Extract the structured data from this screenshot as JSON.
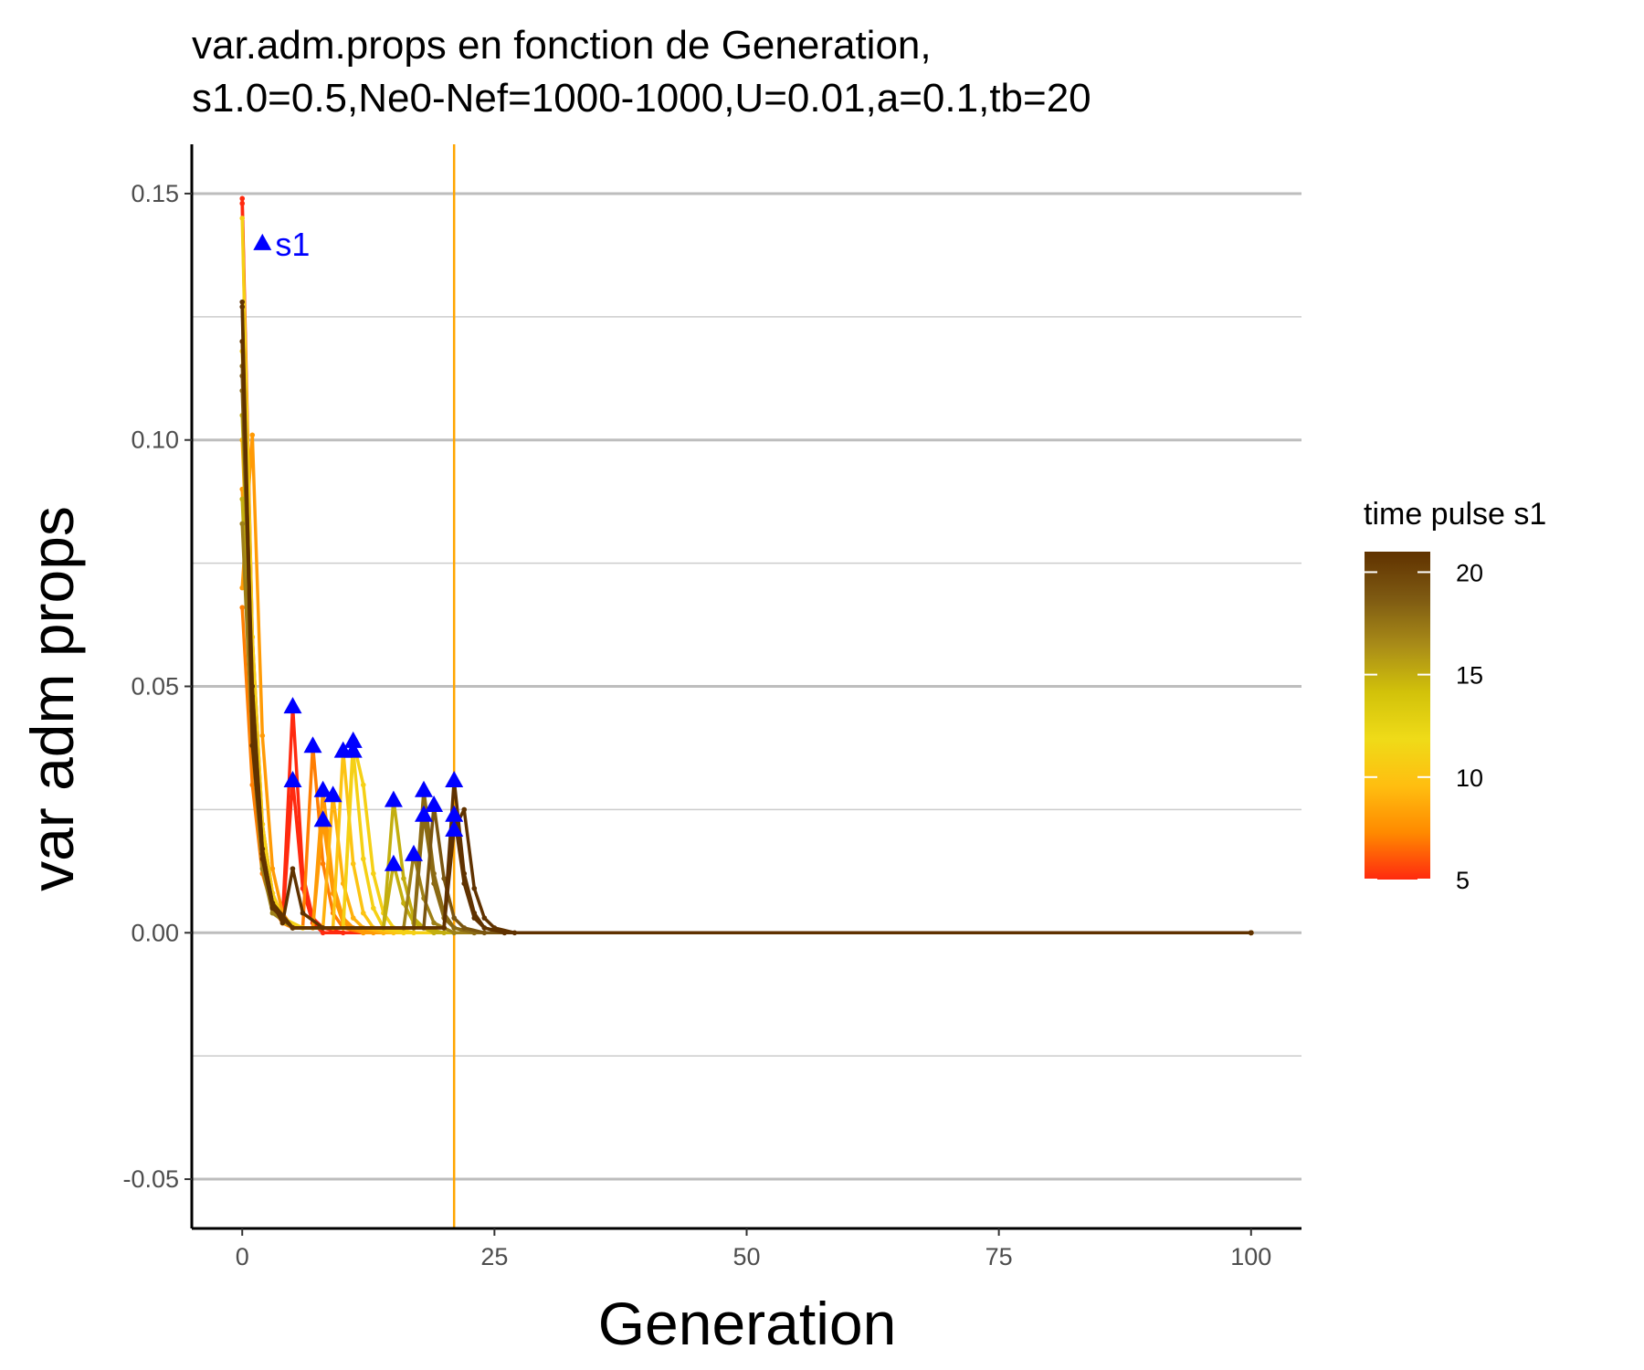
{
  "chart_data": {
    "type": "line",
    "title_line1": "var.adm.props en fonction de Generation,",
    "title_line2": "s1.0=0.5,Ne0-Nef=1000-1000,U=0.01,a=0.1,tb=20",
    "xlabel": "Generation",
    "ylabel": "var adm props",
    "xlim": [
      -5,
      105
    ],
    "ylim": [
      -0.06,
      0.16
    ],
    "xticks": [
      0,
      25,
      50,
      75,
      100
    ],
    "xtick_labels": [
      "0",
      "25",
      "50",
      "75",
      "100"
    ],
    "yticks": [
      -0.05,
      0.0,
      0.05,
      0.1,
      0.15
    ],
    "ytick_labels": [
      "-0.05",
      "0.00",
      "0.05",
      "0.10",
      "0.15"
    ],
    "y_minor_gridlines": [
      -0.025,
      0.025,
      0.075,
      0.125
    ],
    "grid": "horizontal",
    "vline": {
      "x": 21,
      "color": "#FFA500"
    },
    "annotation": {
      "text": "s1",
      "x": 2,
      "y": 0.14,
      "color": "#0000FF"
    },
    "legend": {
      "title": "time pulse s1",
      "placement": "right",
      "type": "colorbar",
      "range": [
        5,
        21
      ],
      "ticks": [
        5,
        10,
        15,
        20
      ],
      "tick_labels": [
        "5",
        "10",
        "15",
        "20"
      ],
      "colors": [
        "#FF2A0F",
        "#FF8A00",
        "#FFBE10",
        "#EFDB18",
        "#D2C20A",
        "#A98C18",
        "#7E5A12",
        "#603200"
      ]
    },
    "series": [
      {
        "pulse": 5,
        "values": [
          [
            0,
            0.149
          ],
          [
            1,
            0.06
          ],
          [
            2,
            0.022
          ],
          [
            3,
            0.008
          ],
          [
            4,
            0.003
          ],
          [
            5,
            0.046
          ],
          [
            6,
            0.012
          ],
          [
            7,
            0.003
          ],
          [
            8,
            0.001
          ],
          [
            10,
            0.0
          ],
          [
            100,
            0.0
          ]
        ]
      },
      {
        "pulse": 5,
        "values": [
          [
            0,
            0.148
          ],
          [
            1,
            0.055
          ],
          [
            2,
            0.018
          ],
          [
            3,
            0.006
          ],
          [
            4,
            0.002
          ],
          [
            5,
            0.031
          ],
          [
            6,
            0.009
          ],
          [
            7,
            0.002
          ],
          [
            8,
            0.0
          ],
          [
            100,
            0.0
          ]
        ]
      },
      {
        "pulse": 7,
        "values": [
          [
            0,
            0.066
          ],
          [
            1,
            0.03
          ],
          [
            2,
            0.012
          ],
          [
            3,
            0.005
          ],
          [
            4,
            0.002
          ],
          [
            5,
            0.001
          ],
          [
            6,
            0.001
          ],
          [
            7,
            0.038
          ],
          [
            8,
            0.014
          ],
          [
            9,
            0.004
          ],
          [
            10,
            0.001
          ],
          [
            12,
            0.0
          ],
          [
            100,
            0.0
          ]
        ]
      },
      {
        "pulse": 8,
        "values": [
          [
            0,
            0.07
          ],
          [
            1,
            0.101
          ],
          [
            2,
            0.04
          ],
          [
            3,
            0.013
          ],
          [
            4,
            0.004
          ],
          [
            5,
            0.001
          ],
          [
            7,
            0.001
          ],
          [
            8,
            0.029
          ],
          [
            9,
            0.01
          ],
          [
            10,
            0.003
          ],
          [
            11,
            0.001
          ],
          [
            13,
            0.0
          ],
          [
            100,
            0.0
          ]
        ]
      },
      {
        "pulse": 8,
        "values": [
          [
            0,
            0.09
          ],
          [
            1,
            0.045
          ],
          [
            2,
            0.016
          ],
          [
            3,
            0.005
          ],
          [
            5,
            0.001
          ],
          [
            7,
            0.001
          ],
          [
            8,
            0.023
          ],
          [
            9,
            0.008
          ],
          [
            10,
            0.002
          ],
          [
            12,
            0.0
          ],
          [
            100,
            0.0
          ]
        ]
      },
      {
        "pulse": 9,
        "values": [
          [
            0,
            0.1
          ],
          [
            1,
            0.05
          ],
          [
            2,
            0.018
          ],
          [
            3,
            0.006
          ],
          [
            4,
            0.002
          ],
          [
            6,
            0.001
          ],
          [
            8,
            0.001
          ],
          [
            9,
            0.028
          ],
          [
            10,
            0.01
          ],
          [
            11,
            0.003
          ],
          [
            12,
            0.001
          ],
          [
            14,
            0.0
          ],
          [
            100,
            0.0
          ]
        ]
      },
      {
        "pulse": 10,
        "values": [
          [
            0,
            0.12
          ],
          [
            1,
            0.055
          ],
          [
            2,
            0.02
          ],
          [
            3,
            0.007
          ],
          [
            4,
            0.002
          ],
          [
            6,
            0.001
          ],
          [
            9,
            0.001
          ],
          [
            10,
            0.037
          ],
          [
            11,
            0.014
          ],
          [
            12,
            0.004
          ],
          [
            13,
            0.001
          ],
          [
            15,
            0.0
          ],
          [
            100,
            0.0
          ]
        ]
      },
      {
        "pulse": 11,
        "values": [
          [
            0,
            0.145
          ],
          [
            1,
            0.06
          ],
          [
            2,
            0.022
          ],
          [
            3,
            0.008
          ],
          [
            4,
            0.003
          ],
          [
            6,
            0.001
          ],
          [
            10,
            0.001
          ],
          [
            11,
            0.039
          ],
          [
            12,
            0.03
          ],
          [
            13,
            0.012
          ],
          [
            14,
            0.004
          ],
          [
            15,
            0.001
          ],
          [
            17,
            0.0
          ],
          [
            100,
            0.0
          ]
        ]
      },
      {
        "pulse": 11,
        "values": [
          [
            0,
            0.118
          ],
          [
            1,
            0.05
          ],
          [
            2,
            0.018
          ],
          [
            3,
            0.006
          ],
          [
            5,
            0.001
          ],
          [
            10,
            0.001
          ],
          [
            11,
            0.037
          ],
          [
            12,
            0.015
          ],
          [
            13,
            0.005
          ],
          [
            14,
            0.001
          ],
          [
            16,
            0.0
          ],
          [
            100,
            0.0
          ]
        ]
      },
      {
        "pulse": 15,
        "values": [
          [
            0,
            0.088
          ],
          [
            1,
            0.04
          ],
          [
            2,
            0.014
          ],
          [
            3,
            0.005
          ],
          [
            5,
            0.001
          ],
          [
            14,
            0.001
          ],
          [
            15,
            0.027
          ],
          [
            16,
            0.011
          ],
          [
            17,
            0.003
          ],
          [
            18,
            0.001
          ],
          [
            20,
            0.0
          ],
          [
            100,
            0.0
          ]
        ]
      },
      {
        "pulse": 15,
        "values": [
          [
            0,
            0.105
          ],
          [
            1,
            0.045
          ],
          [
            2,
            0.016
          ],
          [
            3,
            0.005
          ],
          [
            5,
            0.001
          ],
          [
            14,
            0.001
          ],
          [
            15,
            0.014
          ],
          [
            16,
            0.006
          ],
          [
            17,
            0.002
          ],
          [
            19,
            0.0
          ],
          [
            100,
            0.0
          ]
        ]
      },
      {
        "pulse": 17,
        "values": [
          [
            0,
            0.083
          ],
          [
            1,
            0.038
          ],
          [
            2,
            0.013
          ],
          [
            3,
            0.004
          ],
          [
            5,
            0.001
          ],
          [
            16,
            0.001
          ],
          [
            17,
            0.016
          ],
          [
            18,
            0.007
          ],
          [
            19,
            0.002
          ],
          [
            21,
            0.0
          ],
          [
            100,
            0.0
          ]
        ]
      },
      {
        "pulse": 18,
        "values": [
          [
            0,
            0.115
          ],
          [
            1,
            0.05
          ],
          [
            2,
            0.017
          ],
          [
            3,
            0.006
          ],
          [
            5,
            0.001
          ],
          [
            17,
            0.001
          ],
          [
            18,
            0.029
          ],
          [
            19,
            0.012
          ],
          [
            20,
            0.004
          ],
          [
            21,
            0.001
          ],
          [
            23,
            0.0
          ],
          [
            100,
            0.0
          ]
        ]
      },
      {
        "pulse": 18,
        "values": [
          [
            0,
            0.11
          ],
          [
            1,
            0.047
          ],
          [
            2,
            0.016
          ],
          [
            3,
            0.005
          ],
          [
            5,
            0.001
          ],
          [
            17,
            0.001
          ],
          [
            18,
            0.024
          ],
          [
            19,
            0.01
          ],
          [
            20,
            0.003
          ],
          [
            21,
            0.001
          ],
          [
            23,
            0.0
          ],
          [
            100,
            0.0
          ]
        ]
      },
      {
        "pulse": 19,
        "values": [
          [
            0,
            0.113
          ],
          [
            1,
            0.048
          ],
          [
            2,
            0.017
          ],
          [
            3,
            0.006
          ],
          [
            5,
            0.001
          ],
          [
            18,
            0.001
          ],
          [
            19,
            0.026
          ],
          [
            20,
            0.011
          ],
          [
            21,
            0.003
          ],
          [
            22,
            0.001
          ],
          [
            24,
            0.0
          ],
          [
            100,
            0.0
          ]
        ]
      },
      {
        "pulse": 21,
        "values": [
          [
            0,
            0.127
          ],
          [
            1,
            0.038
          ],
          [
            2,
            0.016
          ],
          [
            3,
            0.006
          ],
          [
            4,
            0.002
          ],
          [
            5,
            0.013
          ],
          [
            6,
            0.004
          ],
          [
            8,
            0.001
          ],
          [
            20,
            0.001
          ],
          [
            21,
            0.031
          ],
          [
            22,
            0.012
          ],
          [
            23,
            0.004
          ],
          [
            24,
            0.001
          ],
          [
            26,
            0.0
          ],
          [
            100,
            0.0
          ]
        ]
      },
      {
        "pulse": 21,
        "values": [
          [
            0,
            0.128
          ],
          [
            1,
            0.045
          ],
          [
            2,
            0.015
          ],
          [
            3,
            0.005
          ],
          [
            5,
            0.001
          ],
          [
            20,
            0.001
          ],
          [
            21,
            0.021
          ],
          [
            22,
            0.025
          ],
          [
            23,
            0.009
          ],
          [
            24,
            0.003
          ],
          [
            25,
            0.001
          ],
          [
            27,
            0.0
          ],
          [
            100,
            0.0
          ]
        ]
      },
      {
        "pulse": 21,
        "values": [
          [
            0,
            0.12
          ],
          [
            1,
            0.05
          ],
          [
            2,
            0.017
          ],
          [
            3,
            0.006
          ],
          [
            5,
            0.001
          ],
          [
            20,
            0.001
          ],
          [
            21,
            0.024
          ],
          [
            22,
            0.01
          ],
          [
            23,
            0.003
          ],
          [
            24,
            0.001
          ],
          [
            26,
            0.0
          ],
          [
            100,
            0.0
          ]
        ]
      }
    ],
    "pulse_markers": [
      [
        5,
        0.046
      ],
      [
        5,
        0.031
      ],
      [
        7,
        0.038
      ],
      [
        8,
        0.029
      ],
      [
        8,
        0.023
      ],
      [
        9,
        0.028
      ],
      [
        10,
        0.037
      ],
      [
        11,
        0.039
      ],
      [
        11,
        0.037
      ],
      [
        15,
        0.027
      ],
      [
        15,
        0.014
      ],
      [
        17,
        0.016
      ],
      [
        18,
        0.029
      ],
      [
        18,
        0.024
      ],
      [
        19,
        0.026
      ],
      [
        21,
        0.031
      ],
      [
        21,
        0.024
      ],
      [
        21,
        0.021
      ]
    ],
    "marker_color": "#0000FF"
  }
}
